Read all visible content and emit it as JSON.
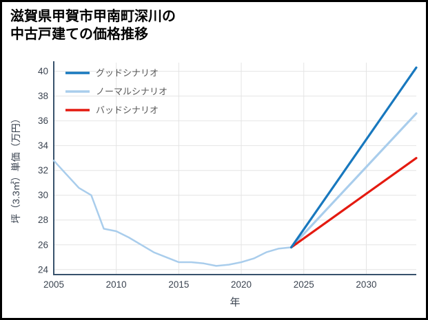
{
  "header": {
    "title_line1": "滋賀県甲賀市甲南町深川の",
    "title_line2": "中古戸建ての価格推移"
  },
  "style": {
    "background": "#ffffff",
    "frame_border": "#000000",
    "grid_color": "#e4e4e4",
    "axis_color": "#37516b",
    "tick_color": "#3a4350",
    "legend_text_color": "#595959",
    "good_color": "#1878be",
    "normal_color": "#a9cdec",
    "bad_color": "#e41a10"
  },
  "chart_data": {
    "type": "line",
    "title": "滋賀県甲賀市甲南町深川の中古戸建ての価格推移",
    "xlabel": "年",
    "ylabel": "坪（3.3㎡）単価（万円）",
    "xlim": [
      2005,
      2034
    ],
    "ylim": [
      23.6,
      40.7
    ],
    "xticks": [
      2005,
      2010,
      2015,
      2020,
      2025,
      2030
    ],
    "yticks": [
      24,
      26,
      28,
      30,
      32,
      34,
      36,
      38,
      40
    ],
    "grid": true,
    "legend": {
      "position": "top-left",
      "entries": [
        "グッドシナリオ",
        "ノーマルシナリオ",
        "バッドシナリオ"
      ]
    },
    "series": [
      {
        "id": "historical",
        "label": "",
        "color": "#a9cdec",
        "width": 2.5,
        "x": [
          2005,
          2006,
          2007,
          2008,
          2009,
          2010,
          2011,
          2012,
          2013,
          2014,
          2015,
          2016,
          2017,
          2018,
          2019,
          2020,
          2021,
          2022,
          2023,
          2024
        ],
        "y": [
          32.8,
          31.7,
          30.6,
          30.0,
          27.3,
          27.1,
          26.6,
          26.0,
          25.4,
          25.0,
          24.6,
          24.6,
          24.5,
          24.3,
          24.4,
          24.6,
          24.9,
          25.4,
          25.7,
          25.8
        ]
      },
      {
        "id": "normal",
        "label": "ノーマルシナリオ",
        "color": "#a9cdec",
        "width": 3.2,
        "x": [
          2024,
          2034
        ],
        "y": [
          25.8,
          36.6
        ]
      },
      {
        "id": "bad",
        "label": "バッドシナリオ",
        "color": "#e41a10",
        "width": 3.2,
        "x": [
          2024,
          2034
        ],
        "y": [
          25.8,
          33.0
        ]
      },
      {
        "id": "good",
        "label": "グッドシナリオ",
        "color": "#1878be",
        "width": 3.2,
        "x": [
          2024,
          2034
        ],
        "y": [
          25.8,
          40.3
        ]
      }
    ]
  }
}
